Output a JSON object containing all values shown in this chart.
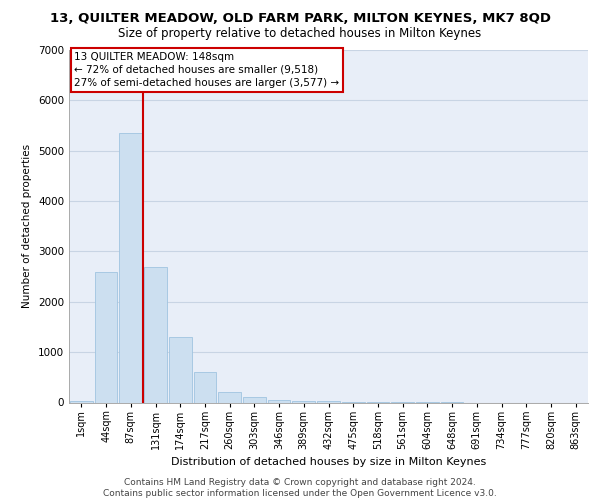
{
  "title_line1": "13, QUILTER MEADOW, OLD FARM PARK, MILTON KEYNES, MK7 8QD",
  "title_line2": "Size of property relative to detached houses in Milton Keynes",
  "xlabel": "Distribution of detached houses by size in Milton Keynes",
  "ylabel": "Number of detached properties",
  "footnote": "Contains HM Land Registry data © Crown copyright and database right 2024.\nContains public sector information licensed under the Open Government Licence v3.0.",
  "annotation_line1": "13 QUILTER MEADOW: 148sqm",
  "annotation_line2": "← 72% of detached houses are smaller (9,518)",
  "annotation_line3": "27% of semi-detached houses are larger (3,577) →",
  "bar_labels": [
    "1sqm",
    "44sqm",
    "87sqm",
    "131sqm",
    "174sqm",
    "217sqm",
    "260sqm",
    "303sqm",
    "346sqm",
    "389sqm",
    "432sqm",
    "475sqm",
    "518sqm",
    "561sqm",
    "604sqm",
    "648sqm",
    "691sqm",
    "734sqm",
    "777sqm",
    "820sqm",
    "863sqm"
  ],
  "bar_values": [
    30,
    2600,
    5350,
    2700,
    1300,
    600,
    200,
    100,
    50,
    30,
    20,
    10,
    5,
    3,
    2,
    1,
    0,
    0,
    0,
    0,
    0
  ],
  "bar_color": "#ccdff0",
  "bar_edge_color": "#a0c4e0",
  "vline_color": "#cc0000",
  "vline_x_idx": 3,
  "annotation_box_color": "#cc0000",
  "grid_color": "#c8d4e4",
  "background_color": "#e8eef8",
  "ylim": [
    0,
    7000
  ],
  "yticks": [
    0,
    1000,
    2000,
    3000,
    4000,
    5000,
    6000,
    7000
  ],
  "title1_fontsize": 9.5,
  "title2_fontsize": 8.5,
  "ylabel_fontsize": 7.5,
  "xlabel_fontsize": 8,
  "tick_fontsize": 7,
  "annot_fontsize": 7.5,
  "footnote_fontsize": 6.5
}
